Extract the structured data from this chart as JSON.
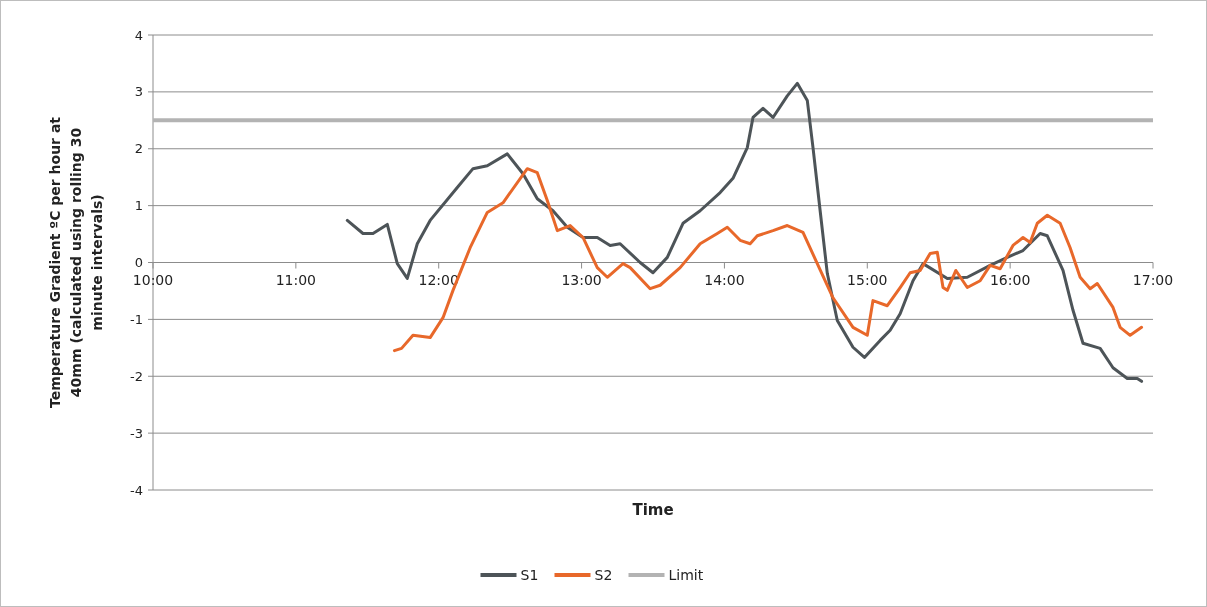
{
  "chart_data": {
    "type": "line",
    "xlabel": "Time",
    "ylabel": "Temperature Gradient  ºC per hour at 40mm  (calculated using rolling 30 minute intervals)",
    "xlim": [
      10,
      17
    ],
    "xticks": [
      {
        "value": 10,
        "label": "10:00"
      },
      {
        "value": 11,
        "label": "11:00"
      },
      {
        "value": 12,
        "label": "12:00"
      },
      {
        "value": 13,
        "label": "13:00"
      },
      {
        "value": 14,
        "label": "14:00"
      },
      {
        "value": 15,
        "label": "15:00"
      },
      {
        "value": 16,
        "label": "16:00"
      },
      {
        "value": 17,
        "label": "17:00"
      }
    ],
    "ylim": [
      -4,
      4
    ],
    "yticks": [
      -4,
      -3,
      -2,
      -1,
      0,
      1,
      2,
      3,
      4
    ],
    "grid": "y",
    "legend": "bottom",
    "line_style": "solid",
    "marker": "none",
    "series": [
      {
        "name": "S1",
        "color": "#4d5458",
        "x": [
          11.36,
          11.47,
          11.54,
          11.64,
          11.71,
          11.78,
          11.85,
          11.94,
          12.13,
          12.24,
          12.34,
          12.48,
          12.59,
          12.69,
          12.8,
          12.9,
          13.01,
          13.11,
          13.2,
          13.27,
          13.41,
          13.5,
          13.6,
          13.71,
          13.83,
          13.97,
          14.06,
          14.16,
          14.2,
          14.27,
          14.34,
          14.44,
          14.51,
          14.58,
          14.62,
          14.67,
          14.72,
          14.79,
          14.9,
          14.98,
          15.09,
          15.16,
          15.23,
          15.32,
          15.39,
          15.56,
          15.7,
          15.86,
          15.98,
          16.09,
          16.21,
          16.26,
          16.37,
          16.44,
          16.51,
          16.63,
          16.72,
          16.82,
          16.89,
          16.92
        ],
        "values": [
          0.74,
          0.51,
          0.51,
          0.67,
          -0.02,
          -0.28,
          0.33,
          0.74,
          1.32,
          1.65,
          1.7,
          1.91,
          1.56,
          1.12,
          0.91,
          0.62,
          0.44,
          0.44,
          0.3,
          0.33,
          0,
          -0.18,
          0.09,
          0.69,
          0.91,
          1.23,
          1.48,
          2.02,
          2.55,
          2.71,
          2.55,
          2.93,
          3.15,
          2.85,
          2.02,
          0.91,
          -0.19,
          -1.02,
          -1.49,
          -1.67,
          -1.37,
          -1.19,
          -0.9,
          -0.32,
          -0.02,
          -0.28,
          -0.26,
          -0.05,
          0.09,
          0.21,
          0.51,
          0.47,
          -0.14,
          -0.84,
          -1.42,
          -1.51,
          -1.85,
          -2.04,
          -2.04,
          -2.09
        ]
      },
      {
        "name": "S2",
        "color": "#e8682a",
        "x": [
          11.69,
          11.74,
          11.82,
          11.94,
          12.03,
          12.1,
          12.22,
          12.34,
          12.45,
          12.62,
          12.69,
          12.76,
          12.83,
          12.92,
          13.01,
          13.11,
          13.18,
          13.29,
          13.34,
          13.48,
          13.55,
          13.69,
          13.83,
          13.95,
          14.02,
          14.11,
          14.18,
          14.23,
          14.34,
          14.44,
          14.55,
          14.65,
          14.76,
          14.9,
          15,
          15.04,
          15.14,
          15.23,
          15.3,
          15.37,
          15.44,
          15.49,
          15.53,
          15.56,
          15.62,
          15.7,
          15.79,
          15.86,
          15.93,
          16.02,
          16.09,
          16.14,
          16.19,
          16.26,
          16.35,
          16.42,
          16.49,
          16.56,
          16.61,
          16.72,
          16.77,
          16.84,
          16.92
        ],
        "values": [
          -1.55,
          -1.51,
          -1.28,
          -1.32,
          -0.97,
          -0.49,
          0.26,
          0.88,
          1.05,
          1.65,
          1.58,
          1.09,
          0.56,
          0.65,
          0.44,
          -0.09,
          -0.26,
          -0.02,
          -0.09,
          -0.46,
          -0.4,
          -0.09,
          0.33,
          0.51,
          0.62,
          0.39,
          0.33,
          0.47,
          0.56,
          0.65,
          0.53,
          -0.02,
          -0.62,
          -1.14,
          -1.28,
          -0.67,
          -0.76,
          -0.44,
          -0.18,
          -0.14,
          0.16,
          0.18,
          -0.44,
          -0.49,
          -0.14,
          -0.44,
          -0.32,
          -0.05,
          -0.11,
          0.3,
          0.44,
          0.35,
          0.69,
          0.83,
          0.69,
          0.26,
          -0.26,
          -0.46,
          -0.37,
          -0.79,
          -1.14,
          -1.28,
          -1.14
        ]
      }
    ],
    "ref_lines": [
      {
        "axis": "y",
        "value": 2.5,
        "label": "Limit",
        "color": "#b3b3b3"
      }
    ]
  }
}
